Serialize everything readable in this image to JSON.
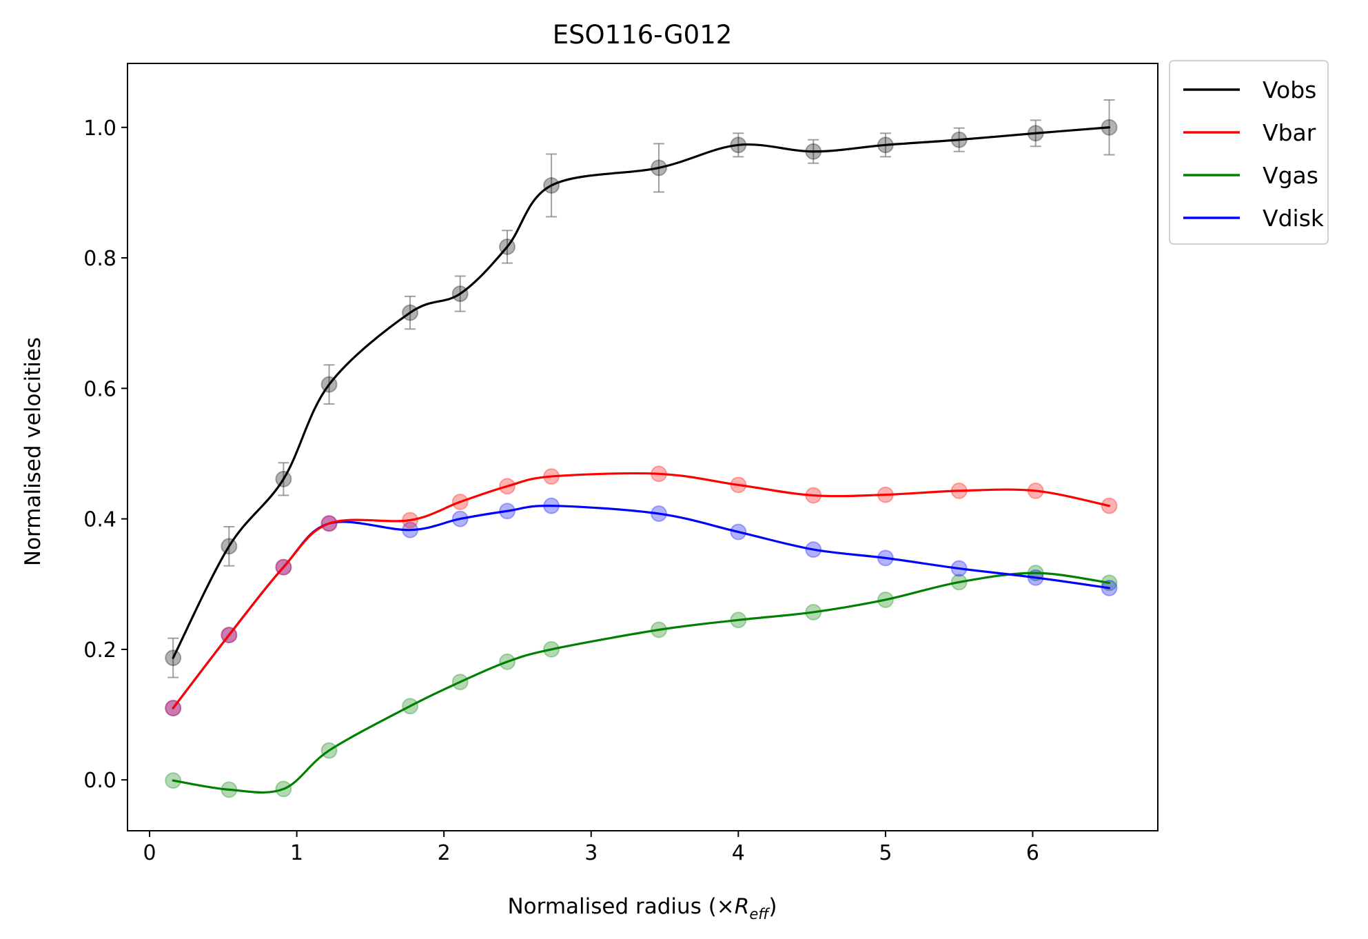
{
  "chart_data": {
    "type": "line",
    "title": "ESO116-G012",
    "xlabel_prefix": "Normalised radius (×",
    "xlabel_symbol": "R",
    "xlabel_subscript": "eff",
    "xlabel_suffix": ")",
    "ylabel": "Normalised velocities",
    "xlim": [
      -0.15,
      6.85
    ],
    "ylim": [
      -0.078,
      1.098
    ],
    "xticks": [
      0,
      1,
      2,
      3,
      4,
      5,
      6
    ],
    "xtick_labels": [
      "0",
      "1",
      "2",
      "3",
      "4",
      "5",
      "6"
    ],
    "yticks": [
      0.0,
      0.2,
      0.4,
      0.6,
      0.8,
      1.0
    ],
    "ytick_labels": [
      "0.0",
      "0.2",
      "0.4",
      "0.6",
      "0.8",
      "1.0"
    ],
    "grid": false,
    "legend_position": "outside-top-right",
    "x": [
      0.16,
      0.54,
      0.91,
      1.22,
      1.77,
      2.11,
      2.43,
      2.73,
      3.46,
      4.0,
      4.51,
      5.0,
      5.5,
      6.02,
      6.52
    ],
    "series": [
      {
        "name": "Vobs",
        "color": "#000000",
        "values": [
          0.187,
          0.358,
          0.461,
          0.606,
          0.716,
          0.745,
          0.817,
          0.911,
          0.938,
          0.973,
          0.963,
          0.973,
          0.981,
          0.991,
          1.0
        ],
        "errors": [
          0.03,
          0.03,
          0.025,
          0.03,
          0.025,
          0.027,
          0.025,
          0.048,
          0.037,
          0.018,
          0.018,
          0.018,
          0.018,
          0.02,
          0.042
        ]
      },
      {
        "name": "Vbar",
        "color": "#ff0000",
        "values": [
          0.11,
          0.222,
          0.326,
          0.393,
          0.398,
          0.426,
          0.45,
          0.465,
          0.469,
          0.452,
          0.436,
          0.437,
          0.443,
          0.443,
          0.42
        ]
      },
      {
        "name": "Vgas",
        "color": "#008000",
        "values": [
          -0.001,
          -0.015,
          -0.014,
          0.045,
          0.113,
          0.15,
          0.181,
          0.2,
          0.23,
          0.245,
          0.257,
          0.276,
          0.303,
          0.317,
          0.302
        ]
      },
      {
        "name": "Vdisk",
        "color": "#0000ff",
        "values": [
          0.11,
          0.222,
          0.326,
          0.393,
          0.383,
          0.4,
          0.412,
          0.42,
          0.408,
          0.38,
          0.353,
          0.34,
          0.324,
          0.31,
          0.294
        ]
      }
    ]
  }
}
